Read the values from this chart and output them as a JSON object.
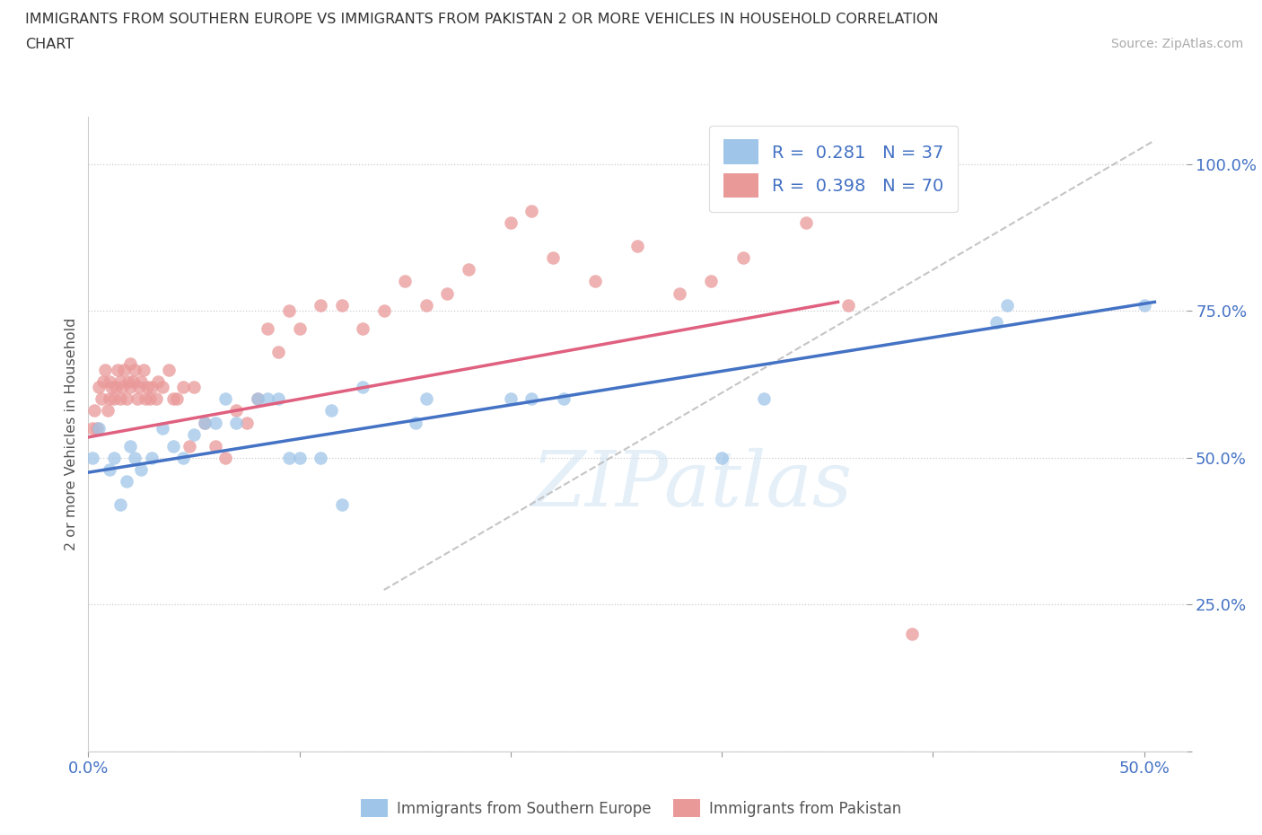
{
  "title_line1": "IMMIGRANTS FROM SOUTHERN EUROPE VS IMMIGRANTS FROM PAKISTAN 2 OR MORE VEHICLES IN HOUSEHOLD CORRELATION",
  "title_line2": "CHART",
  "source": "Source: ZipAtlas.com",
  "ylabel": "2 or more Vehicles in Household",
  "xlim": [
    0.0,
    0.52
  ],
  "ylim": [
    0.0,
    1.08
  ],
  "blue_color": "#9fc5e8",
  "pink_color": "#ea9999",
  "trend_blue": "#4472c4",
  "trend_pink": "#e06080",
  "trend_gray_color": "#bbbbbb",
  "watermark_text": "ZIPatlas",
  "blue_scatter_x": [
    0.002,
    0.005,
    0.01,
    0.012,
    0.015,
    0.018,
    0.02,
    0.022,
    0.025,
    0.03,
    0.035,
    0.04,
    0.045,
    0.05,
    0.055,
    0.06,
    0.065,
    0.07,
    0.08,
    0.085,
    0.09,
    0.095,
    0.1,
    0.11,
    0.115,
    0.12,
    0.13,
    0.155,
    0.16,
    0.2,
    0.21,
    0.225,
    0.3,
    0.32,
    0.43,
    0.435,
    0.5
  ],
  "blue_scatter_y": [
    0.5,
    0.55,
    0.48,
    0.5,
    0.42,
    0.46,
    0.52,
    0.5,
    0.48,
    0.5,
    0.55,
    0.52,
    0.5,
    0.54,
    0.56,
    0.56,
    0.6,
    0.56,
    0.6,
    0.6,
    0.6,
    0.5,
    0.5,
    0.5,
    0.58,
    0.42,
    0.62,
    0.56,
    0.6,
    0.6,
    0.6,
    0.6,
    0.5,
    0.6,
    0.73,
    0.76,
    0.76
  ],
  "pink_scatter_x": [
    0.002,
    0.003,
    0.004,
    0.005,
    0.006,
    0.007,
    0.008,
    0.009,
    0.01,
    0.01,
    0.011,
    0.012,
    0.013,
    0.014,
    0.015,
    0.015,
    0.016,
    0.017,
    0.018,
    0.019,
    0.02,
    0.02,
    0.021,
    0.022,
    0.023,
    0.024,
    0.025,
    0.026,
    0.027,
    0.028,
    0.029,
    0.03,
    0.032,
    0.033,
    0.035,
    0.038,
    0.04,
    0.042,
    0.045,
    0.048,
    0.05,
    0.055,
    0.06,
    0.065,
    0.07,
    0.075,
    0.08,
    0.085,
    0.09,
    0.095,
    0.1,
    0.11,
    0.12,
    0.13,
    0.14,
    0.15,
    0.16,
    0.17,
    0.18,
    0.2,
    0.21,
    0.22,
    0.24,
    0.26,
    0.28,
    0.295,
    0.31,
    0.34,
    0.36,
    0.39
  ],
  "pink_scatter_y": [
    0.55,
    0.58,
    0.55,
    0.62,
    0.6,
    0.63,
    0.65,
    0.58,
    0.6,
    0.63,
    0.62,
    0.6,
    0.62,
    0.65,
    0.6,
    0.63,
    0.62,
    0.65,
    0.6,
    0.63,
    0.62,
    0.66,
    0.63,
    0.65,
    0.6,
    0.62,
    0.63,
    0.65,
    0.6,
    0.62,
    0.6,
    0.62,
    0.6,
    0.63,
    0.62,
    0.65,
    0.6,
    0.6,
    0.62,
    0.52,
    0.62,
    0.56,
    0.52,
    0.5,
    0.58,
    0.56,
    0.6,
    0.72,
    0.68,
    0.75,
    0.72,
    0.76,
    0.76,
    0.72,
    0.75,
    0.8,
    0.76,
    0.78,
    0.82,
    0.9,
    0.92,
    0.84,
    0.8,
    0.86,
    0.78,
    0.8,
    0.84,
    0.9,
    0.76,
    0.2
  ]
}
